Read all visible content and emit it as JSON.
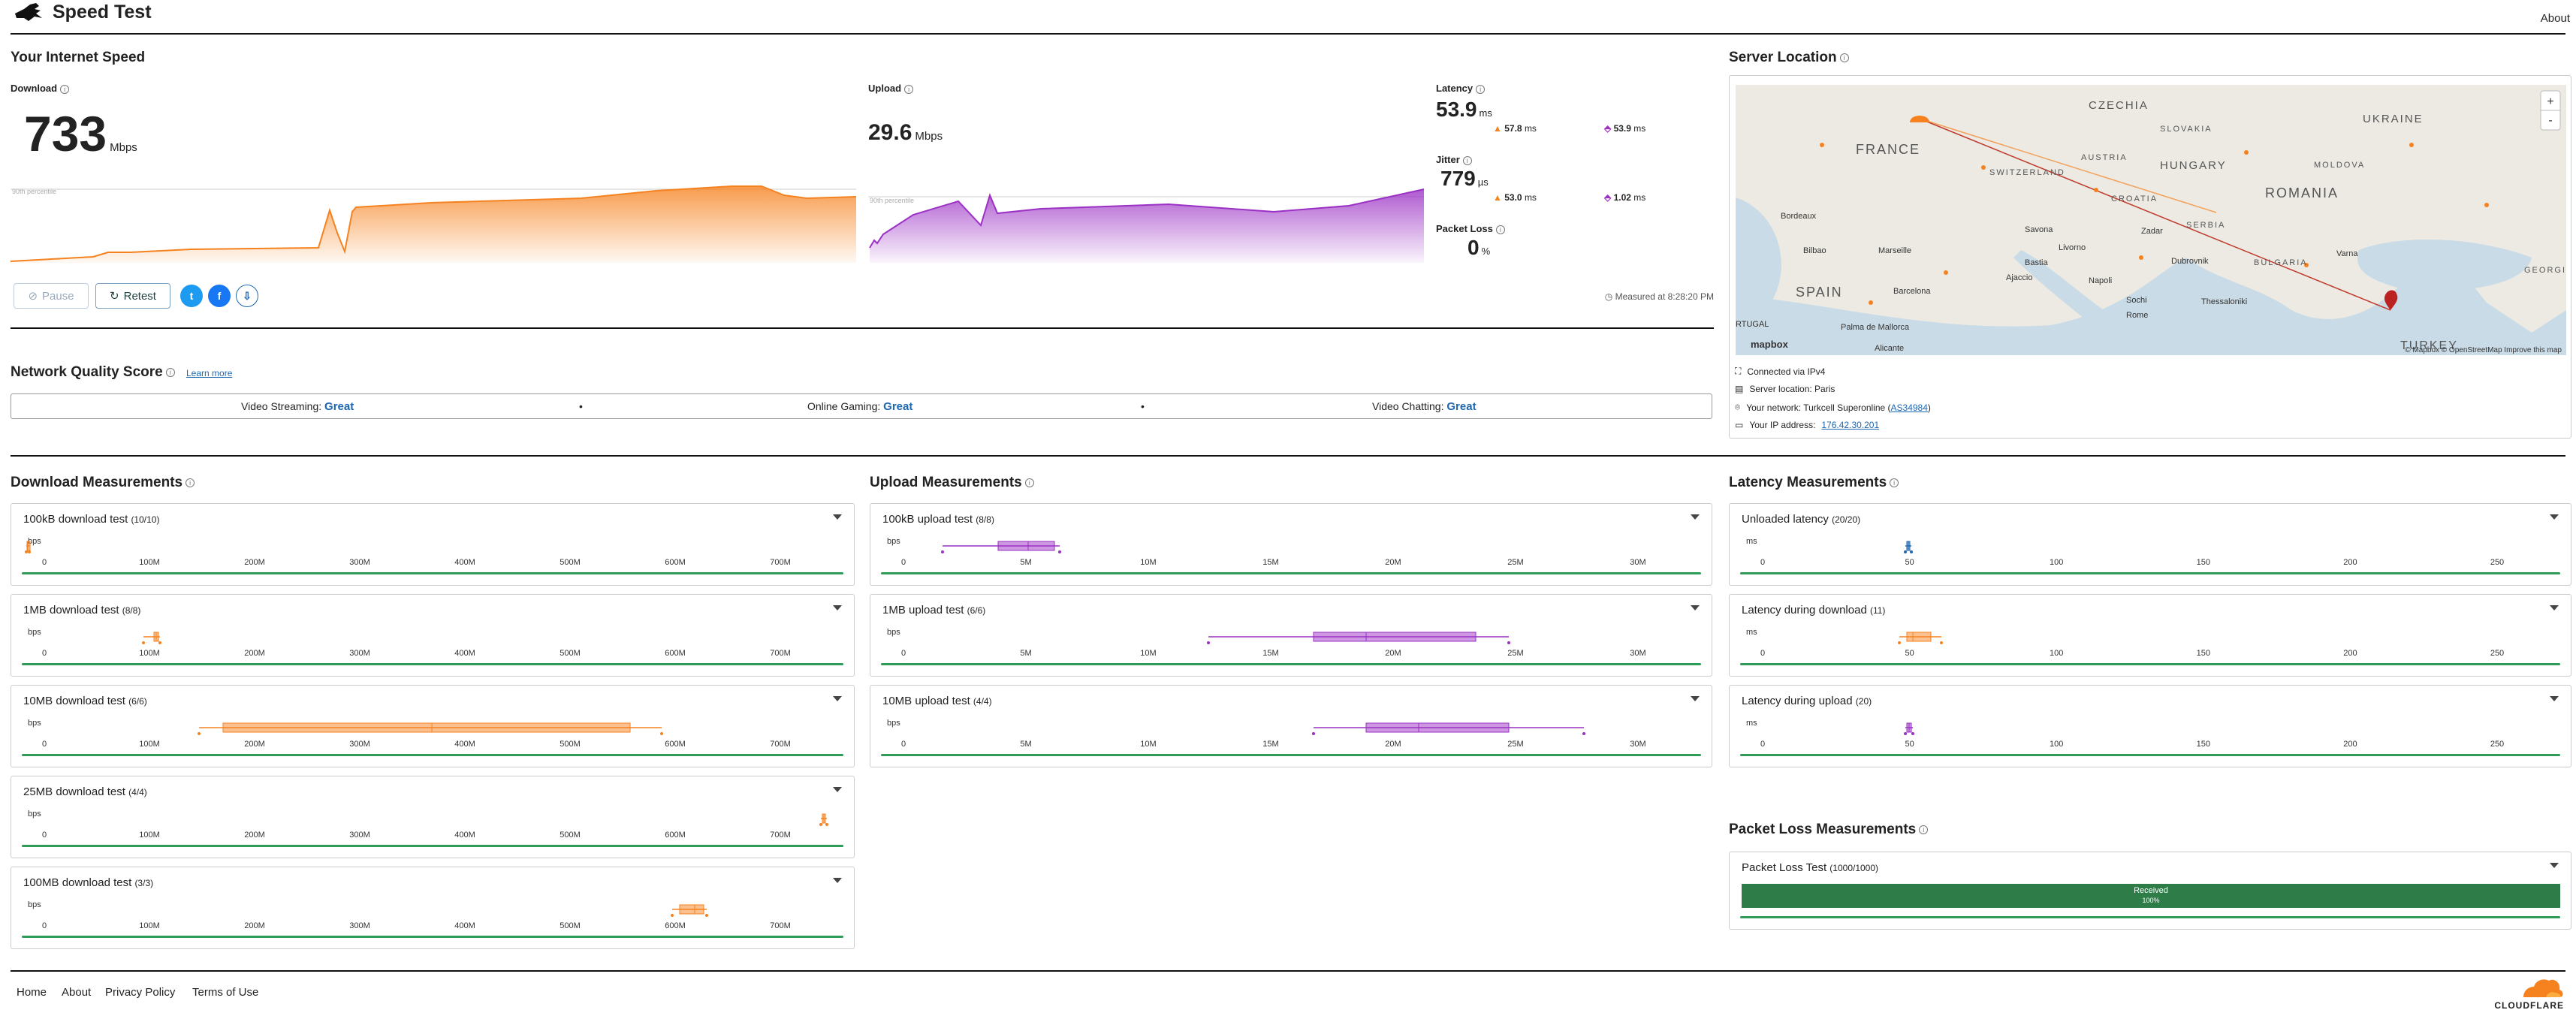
{
  "header": {
    "title": "Speed Test",
    "about": "About"
  },
  "speed": {
    "section_title": "Your Internet Speed",
    "download": {
      "label": "Download",
      "value": "733",
      "unit": "Mbps",
      "percentile": "90th percentile"
    },
    "upload": {
      "label": "Upload",
      "value": "29.6",
      "unit": "Mbps",
      "percentile": "90th percentile"
    },
    "latency": {
      "label": "Latency",
      "value": "53.9",
      "unit": "ms",
      "down": "57.8",
      "up": "53.9",
      "sub_unit": "ms"
    },
    "jitter": {
      "label": "Jitter",
      "value": "779",
      "unit": "µs",
      "down": "53.0",
      "down_unit": "ms",
      "up": "1.02",
      "up_unit": "ms"
    },
    "packet_loss": {
      "label": "Packet Loss",
      "value": "0",
      "unit": "%"
    },
    "pause": "Pause",
    "retest": "Retest",
    "measured": "Measured at 8:28:20 PM"
  },
  "server": {
    "title": "Server Location",
    "map_labels": [
      "CZECHIA",
      "UKRAINE",
      "SLOVAKIA",
      "FRANCE",
      "AUSTRIA",
      "HUNGARY",
      "MOLDOVA",
      "SWITZERLAND",
      "ROMANIA",
      "CROATIA",
      "SERBIA",
      "BULGARIA",
      "SPAIN",
      "TURKEY",
      "GEORGIA",
      "Bordeaux",
      "Marseille",
      "Barcelona",
      "Palma de Mallorca",
      "Alicante",
      "Bilbao",
      "Livorno",
      "Rome",
      "Savona",
      "Bastia",
      "Ajaccio",
      "Zadar",
      "Sochi",
      "Varna",
      "Thessaloniki",
      "Dubrovnik",
      "Napoli",
      "RTUGAL"
    ],
    "attribution": "© Mapbox © OpenStreetMap Improve this map",
    "mapbox": "mapbox",
    "zoom_in": "+",
    "zoom_out": "-",
    "connected": "Connected via IPv4",
    "location": "Server location: Paris",
    "network_prefix": "Your network: Turkcell Superonline (",
    "network_as": "AS34984",
    "network_suffix": ")",
    "ip_prefix": "Your IP address:",
    "ip": "176.42.30.201"
  },
  "quality": {
    "title": "Network Quality Score",
    "learn_more": "Learn more",
    "items": [
      {
        "label": "Video Streaming:",
        "value": "Great"
      },
      {
        "label": "Online Gaming:",
        "value": "Great"
      },
      {
        "label": "Video Chatting:",
        "value": "Great"
      }
    ],
    "sep": "•"
  },
  "download_meas": {
    "title": "Download Measurements",
    "unit": "bps",
    "ticks": [
      "0",
      "100M",
      "200M",
      "300M",
      "400M",
      "500M",
      "600M",
      "700M"
    ],
    "tests": [
      {
        "label": "100kB download test",
        "count": "(10/10)"
      },
      {
        "label": "1MB download test",
        "count": "(8/8)"
      },
      {
        "label": "10MB download test",
        "count": "(6/6)"
      },
      {
        "label": "25MB download test",
        "count": "(4/4)"
      },
      {
        "label": "100MB download test",
        "count": "(3/3)"
      }
    ]
  },
  "upload_meas": {
    "title": "Upload Measurements",
    "unit": "bps",
    "ticks": [
      "0",
      "5M",
      "10M",
      "15M",
      "20M",
      "25M",
      "30M"
    ],
    "tests": [
      {
        "label": "100kB upload test",
        "count": "(8/8)"
      },
      {
        "label": "1MB upload test",
        "count": "(6/6)"
      },
      {
        "label": "10MB upload test",
        "count": "(4/4)"
      }
    ]
  },
  "latency_meas": {
    "title": "Latency Measurements",
    "unit": "ms",
    "ticks": [
      "0",
      "50",
      "100",
      "150",
      "200",
      "250"
    ],
    "tests": [
      {
        "label": "Unloaded latency",
        "count": "(20/20)"
      },
      {
        "label": "Latency during download",
        "count": "(11)"
      },
      {
        "label": "Latency during upload",
        "count": "(20)"
      }
    ]
  },
  "packet_meas": {
    "title": "Packet Loss Measurements",
    "test_label": "Packet Loss Test",
    "count": "(1000/1000)",
    "received": "Received",
    "received_pct": "100%"
  },
  "footer": {
    "links": [
      "Home",
      "About",
      "Privacy Policy",
      "Terms of Use"
    ],
    "brand": "CLOUDFLARE"
  },
  "colors": {
    "download": "#f6821f",
    "upload": "#9b30c4",
    "accent": "#1d66b0",
    "green": "#2e9b57"
  }
}
